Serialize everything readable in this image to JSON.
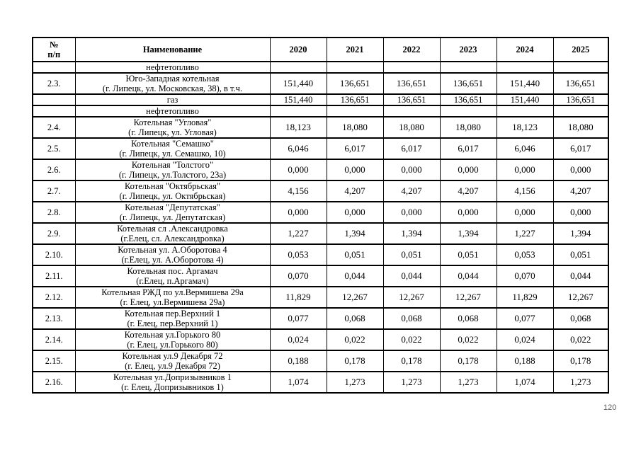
{
  "page_number": "120",
  "table": {
    "header": {
      "num_lines": [
        "№",
        "п/п"
      ],
      "name": "Наименование",
      "years": [
        "2020",
        "2021",
        "2022",
        "2023",
        "2024",
        "2025"
      ]
    },
    "rows": [
      {
        "kind": "sub",
        "num": "",
        "lines": [
          "нефтетопливо"
        ],
        "values": [
          "",
          "",
          "",
          "",
          "",
          ""
        ]
      },
      {
        "kind": "main",
        "num": "2.3.",
        "lines": [
          "Юго-Западная котельная",
          "(г. Липецк, ул. Московская, 38), в т.ч."
        ],
        "values": [
          "151,440",
          "136,651",
          "136,651",
          "136,651",
          "151,440",
          "136,651"
        ]
      },
      {
        "kind": "sub",
        "num": "",
        "lines": [
          "газ"
        ],
        "values": [
          "151,440",
          "136,651",
          "136,651",
          "136,651",
          "151,440",
          "136,651"
        ]
      },
      {
        "kind": "sub",
        "num": "",
        "lines": [
          "нефтетопливо"
        ],
        "values": [
          "",
          "",
          "",
          "",
          "",
          ""
        ]
      },
      {
        "kind": "main",
        "num": "2.4.",
        "lines": [
          "Котельная \"Угловая\"",
          "(г. Липецк, ул. Угловая)"
        ],
        "values": [
          "18,123",
          "18,080",
          "18,080",
          "18,080",
          "18,123",
          "18,080"
        ]
      },
      {
        "kind": "main",
        "num": "2.5.",
        "lines": [
          "Котельная \"Семашко\"",
          "(г. Липецк, ул. Семашко, 10)"
        ],
        "values": [
          "6,046",
          "6,017",
          "6,017",
          "6,017",
          "6,046",
          "6,017"
        ]
      },
      {
        "kind": "main",
        "num": "2.6.",
        "lines": [
          "Котельная \"Толстого\"",
          "(г. Липецк, ул.Толстого, 23а)"
        ],
        "values": [
          "0,000",
          "0,000",
          "0,000",
          "0,000",
          "0,000",
          "0,000"
        ]
      },
      {
        "kind": "main",
        "num": "2.7.",
        "lines": [
          "Котельная \"Октябрьская\"",
          "(г. Липецк, ул. Октябрьская)"
        ],
        "values": [
          "4,156",
          "4,207",
          "4,207",
          "4,207",
          "4,156",
          "4,207"
        ]
      },
      {
        "kind": "main",
        "num": "2.8.",
        "lines": [
          "Котельная \"Депутатская\"",
          "(г. Липецк, ул. Депутатская)"
        ],
        "values": [
          "0,000",
          "0,000",
          "0,000",
          "0,000",
          "0,000",
          "0,000"
        ]
      },
      {
        "kind": "main",
        "num": "2.9.",
        "lines": [
          "Котельная сл .Александровка",
          "(г.Елец, сл. Александровка)"
        ],
        "values": [
          "1,227",
          "1,394",
          "1,394",
          "1,394",
          "1,227",
          "1,394"
        ]
      },
      {
        "kind": "main",
        "num": "2.10.",
        "lines": [
          "Котельная ул. А.Оборотова 4",
          "(г.Елец, ул. А.Оборотова 4)"
        ],
        "values": [
          "0,053",
          "0,051",
          "0,051",
          "0,051",
          "0,053",
          "0,051"
        ]
      },
      {
        "kind": "main",
        "num": "2.11.",
        "lines": [
          "Котельная пос. Аргамач",
          "(г.Елец, п.Аргамач)"
        ],
        "values": [
          "0,070",
          "0,044",
          "0,044",
          "0,044",
          "0,070",
          "0,044"
        ]
      },
      {
        "kind": "main",
        "num": "2.12.",
        "lines": [
          "Котельная РЖД по ул.Вермишева 29а",
          "(г. Елец, ул.Вермишева 29а)"
        ],
        "values": [
          "11,829",
          "12,267",
          "12,267",
          "12,267",
          "11,829",
          "12,267"
        ]
      },
      {
        "kind": "main",
        "num": "2.13.",
        "lines": [
          "Котельная пер.Верхний 1",
          "(г. Елец, пер.Верхний 1)"
        ],
        "values": [
          "0,077",
          "0,068",
          "0,068",
          "0,068",
          "0,077",
          "0,068"
        ]
      },
      {
        "kind": "main",
        "num": "2.14.",
        "lines": [
          "Котельная ул.Горького 80",
          "(г. Елец, ул.Горького 80)"
        ],
        "values": [
          "0,024",
          "0,022",
          "0,022",
          "0,022",
          "0,024",
          "0,022"
        ]
      },
      {
        "kind": "main",
        "num": "2.15.",
        "lines": [
          "Котельная ул.9 Декабря 72",
          "(г. Елец, ул.9 Декабря 72)"
        ],
        "values": [
          "0,188",
          "0,178",
          "0,178",
          "0,178",
          "0,188",
          "0,178"
        ]
      },
      {
        "kind": "main",
        "num": "2.16.",
        "lines": [
          "Котельная ул.Допризывников 1",
          "(г. Елец, Допризывников 1)"
        ],
        "values": [
          "1,074",
          "1,273",
          "1,273",
          "1,273",
          "1,074",
          "1,273"
        ]
      }
    ]
  }
}
